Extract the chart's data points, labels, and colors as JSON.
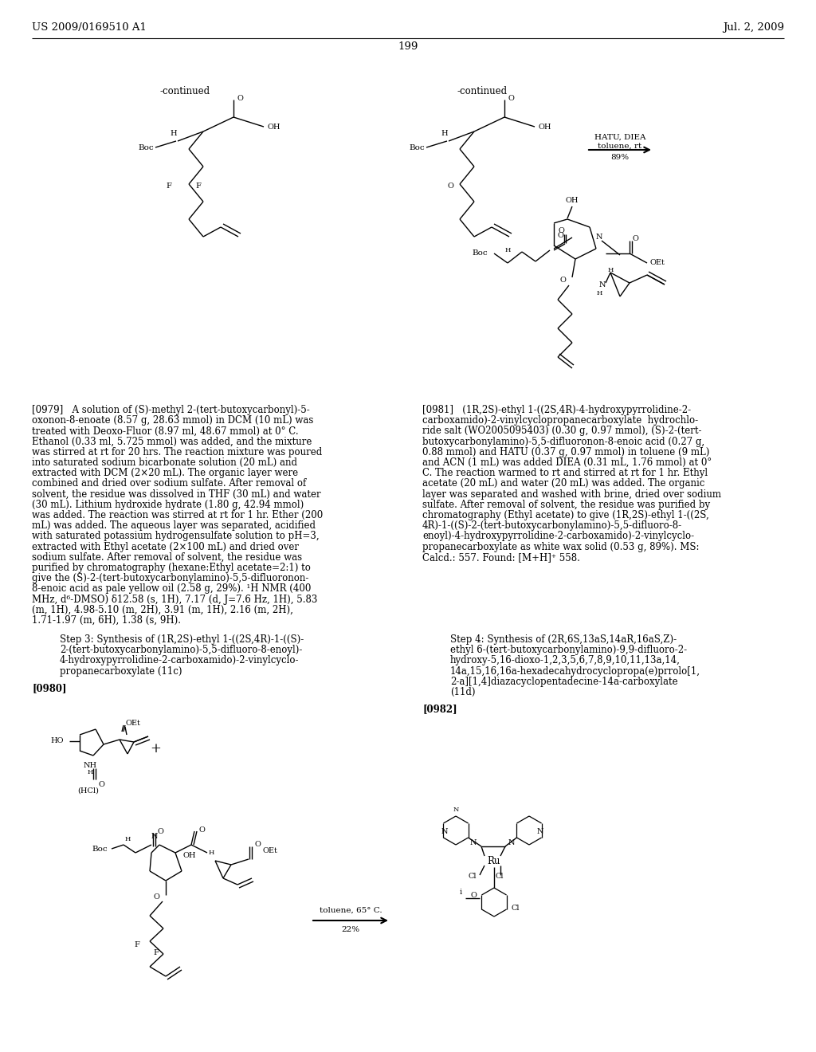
{
  "background_color": "#ffffff",
  "header_left": "US 2009/0169510 A1",
  "header_right": "Jul. 2, 2009",
  "page_number": "199",
  "continued_left": "-continued",
  "continued_right": "-continued",
  "hatu_text": "HATU, DIEA\ntoluene, rt\n89%",
  "toluene_text": "toluene, 65° C.\n22%",
  "para_0979": "[0979]   A solution of (S)-methyl 2-(tert-butoxycarbonyl)-5-oxonon-8-enoate (8.57 g, 28.63 mmol) in DCM (10 mL) was treated with Deoxo-Fluor (8.97 ml, 48.67 mmol) at 0° C. Ethanol (0.33 ml, 5.725 mmol) was added, and the mixture was stirred at rt for 20 hrs. The reaction mixture was poured into saturated sodium bicarbonate solution (20 mL) and extracted with DCM (2×20 mL). The organic layer were combined and dried over sodium sulfate. After removal of solvent, the residue was dissolved in THF (30 mL) and water (30 mL). Lithium hydroxide hydrate (1.80 g, 42.94 mmol) was added. The reaction was stirred at rt for 1 hr. Ether (200 mL) was added. The aqueous layer was separated, acidified with saturated potassium hydrogensulfate solution to pH=3, extracted with Ethyl acetate (2×100 mL) and dried over sodium sulfate. After removal of solvent, the residue was purified by chromatography (hexane:Ethyl acetate=2:1) to give the (S)-2-(tert-butoxycarbonylamino)-5,5-difluoronon-8-enoic acid as pale yellow oil (2.58 g, 29%). ¹H NMR (400 MHz, d⁶-DMSO) δ12.58 (s, 1H), 7.17 (d, J=7.6 Hz, 1H), 5.83 (m, 1H), 4.98-5.10 (m, 2H), 3.91 (m, 1H), 2.16 (m, 2H), 1.71-1.97 (m, 6H), 1.38 (s, 9H).",
  "step3": "Step 3: Synthesis of (1R,2S)-ethyl 1-((2S,4R)-1-((S)-\n2-(tert-butoxycarbonylamino)-5,5-difluoro-8-enoyl)-\n4-hydroxypyrrolidine-2-carboxamido)-2-vinylcyclo-\npropanecarboxylate (11c)",
  "para_0980": "[0980]",
  "para_0981": "[0981]   (1R,2S)-ethyl 1-((2S,4R)-4-hydroxypyrrolidine-2-carboxamido)-2-vinylcyclopropanecarboxylate  hydrochloride salt (WO2005095403) (0.30 g, 0.97 mmol), (S)-2-(tert-butoxycarbonylamino)-5,5-difluoronon-8-enoic acid (0.27 g, 0.88 mmol) and HATU (0.37 g, 0.97 mmol) in toluene (9 mL) and ACN (1 mL) was added DIEA (0.31 mL, 1.76 mmol) at 0° C. The reaction warmed to rt and stirred at rt for 1 hr. Ethyl acetate (20 mL) and water (20 mL) was added. The organic layer was separated and washed with brine, dried over sodium sulfate. After removal of solvent, the residue was purified by chromatography (Ethyl acetate) to give (1R,2S)-ethyl 1-((2S, 4R)-1-((S)-2-(tert-butoxycarbonylamino)-5,5-difluoro-8-enoyl)-4-hydroxypyrrolidine-2-carboxamido)-2-vinylcyclopropanecarboxylate as white wax solid (0.53 g, 89%). MS: Calcd.: 557. Found: [M+H]⁺ 558.",
  "step4": "Step 4: Synthesis of (2R,6S,13aS,14aR,16aS,Z)-\nethyl 6-(tert-butoxycarbonylamino)-9,9-difluoro-2-\nhydroxy-5,16-dioxo-1,2,3,5,6,7,8,9,10,11,13a,14,\n14a,15,16,16a-hexadecahydrocyclopropa(e)prrolo[1,\n2-a][1,4]diazacyclopentadecine-14a-carboxylate\n(11d)",
  "para_0982": "[0982]"
}
